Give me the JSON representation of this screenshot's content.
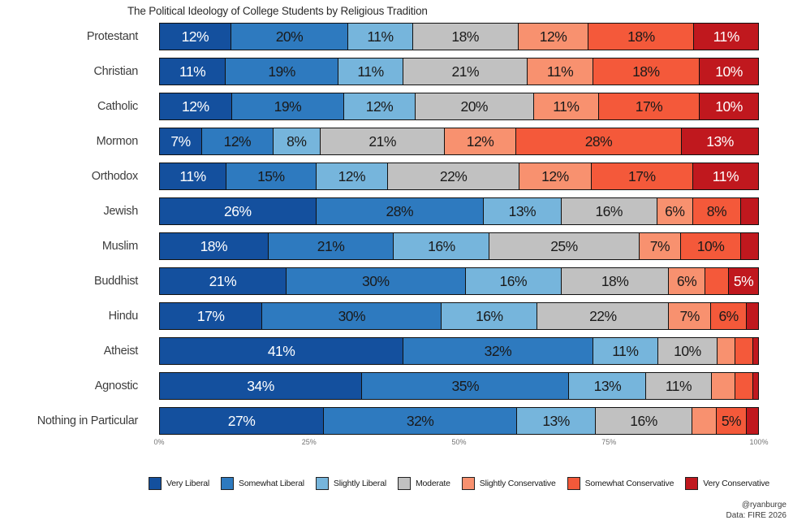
{
  "caption": {
    "handle": "@ryanburge",
    "source": "Data: FIRE 2026"
  },
  "chart_data": {
    "type": "bar",
    "stacked": true,
    "orientation": "horizontal",
    "title": "The Political Ideology of College Students by Religious Tradition",
    "xlabel": "",
    "ylabel": "",
    "xlim": [
      0,
      100
    ],
    "x_tick_labels": [
      "0%",
      "25%",
      "50%",
      "75%",
      "100%"
    ],
    "x_tick_positions": [
      0,
      25,
      50,
      75,
      100
    ],
    "grid": false,
    "legend_position": "bottom",
    "label_min_value": 5,
    "label_suffix": "%",
    "bar_border_color": "#111111",
    "categories": [
      "Protestant",
      "Christian",
      "Catholic",
      "Mormon",
      "Orthodox",
      "Jewish",
      "Muslim",
      "Buddhist",
      "Hindu",
      "Atheist",
      "Agnostic",
      "Nothing in Particular"
    ],
    "series": [
      {
        "name": "Very Liberal",
        "color": "#14509e",
        "text_color": "#ffffff",
        "values": [
          12,
          11,
          12,
          7,
          11,
          26,
          18,
          21,
          17,
          41,
          34,
          27
        ]
      },
      {
        "name": "Somewhat Liberal",
        "color": "#2e7abf",
        "text_color": "#1a1a1a",
        "values": [
          20,
          19,
          19,
          12,
          15,
          28,
          21,
          30,
          30,
          32,
          35,
          32
        ]
      },
      {
        "name": "Slightly Liberal",
        "color": "#76b5dc",
        "text_color": "#1a1a1a",
        "values": [
          11,
          11,
          12,
          8,
          12,
          13,
          16,
          16,
          16,
          11,
          13,
          13
        ]
      },
      {
        "name": "Moderate",
        "color": "#c1c1c1",
        "text_color": "#1a1a1a",
        "values": [
          18,
          21,
          20,
          21,
          22,
          16,
          25,
          18,
          22,
          10,
          11,
          16
        ]
      },
      {
        "name": "Slightly Conservative",
        "color": "#f8916f",
        "text_color": "#1a1a1a",
        "values": [
          12,
          11,
          11,
          12,
          12,
          6,
          7,
          6,
          7,
          3,
          4,
          4
        ]
      },
      {
        "name": "Somewhat Conservative",
        "color": "#f4593a",
        "text_color": "#1a1a1a",
        "values": [
          18,
          18,
          17,
          28,
          17,
          8,
          10,
          4,
          6,
          3,
          3,
          5
        ]
      },
      {
        "name": "Very Conservative",
        "color": "#c0181e",
        "text_color": "#ffffff",
        "values": [
          11,
          10,
          10,
          13,
          11,
          3,
          3,
          5,
          2,
          1,
          1,
          2
        ]
      }
    ]
  }
}
